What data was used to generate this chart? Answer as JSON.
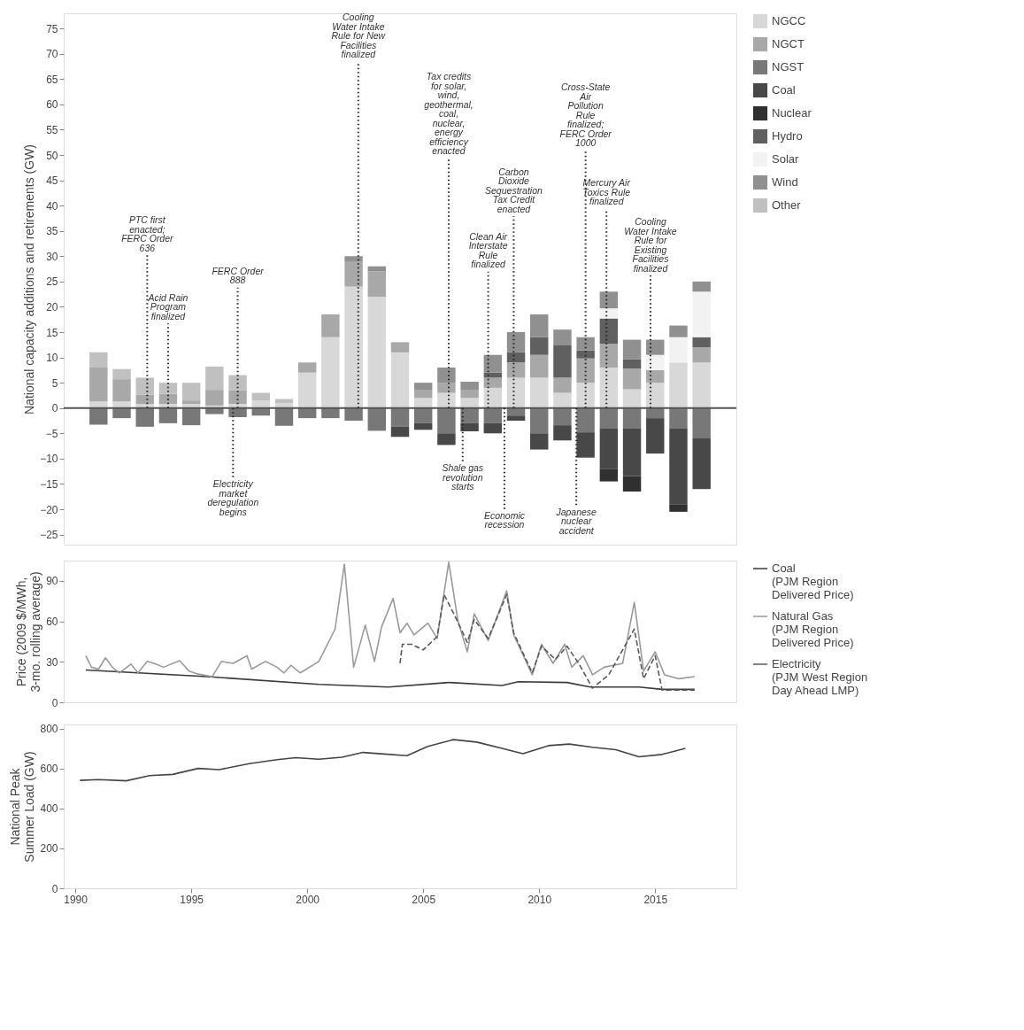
{
  "chart_data": [
    {
      "type": "bar",
      "stacked": true,
      "ylabel": "National capacity additions and retirements (GW)",
      "legend": "right",
      "tick_labels": "y",
      "x": [
        1991,
        1992,
        1993,
        1994,
        1995,
        1996,
        1997,
        1998,
        1999,
        2000,
        2001,
        2002,
        2003,
        2004,
        2005,
        2006,
        2007,
        2008,
        2009,
        2010,
        2011,
        2012,
        2013,
        2014,
        2015,
        2016,
        2017
      ],
      "xlim": [
        1989.5,
        2018.5
      ],
      "xticks": [
        1990,
        1995,
        2000,
        2005,
        2010,
        2015
      ],
      "ylim": [
        -27,
        78
      ],
      "yticks": [
        -25,
        -20,
        -15,
        -10,
        -5,
        0,
        5,
        10,
        15,
        20,
        25,
        30,
        35,
        40,
        45,
        50,
        55,
        60,
        65,
        70,
        75
      ],
      "series": [
        {
          "name": "NGCC",
          "color": "#d8d8d8",
          "values": [
            1.3,
            1.3,
            0.8,
            0.8,
            0.8,
            0.5,
            0.8,
            1.5,
            1,
            7,
            14,
            24,
            22,
            11,
            2,
            3,
            2,
            4,
            6,
            6,
            3,
            5,
            8,
            3.7,
            5,
            9,
            9
          ]
        },
        {
          "name": "NGCT",
          "color": "#a8a8a8",
          "values": [
            6.7,
            4.4,
            1.8,
            2,
            0.7,
            3.1,
            2.7,
            null,
            null,
            2,
            4.5,
            5,
            5,
            2,
            1.5,
            2,
            1.5,
            2,
            3,
            4.5,
            3,
            4.8,
            4.7,
            4.1,
            2.5,
            null,
            3
          ]
        },
        {
          "name": "NGST",
          "color": "#787878",
          "values": [
            -3.3,
            -2,
            -3.7,
            -3,
            -3.4,
            -1.2,
            -1.8,
            -1.5,
            -3.5,
            -2,
            -2,
            -2.5,
            -4.5,
            -3.7,
            -3,
            -5,
            -3,
            -3,
            -1.5,
            -5,
            -3.4,
            -4.8,
            -4,
            -4,
            -2,
            -4,
            -6
          ]
        },
        {
          "name": "Coal",
          "color": "#484848",
          "values": [
            null,
            null,
            null,
            null,
            null,
            null,
            null,
            null,
            null,
            null,
            null,
            null,
            null,
            -2,
            -1.3,
            -2.3,
            -1.6,
            -2,
            -1,
            -3.2,
            -3,
            -5,
            -8,
            -9.5,
            -7,
            -15,
            -10
          ]
        },
        {
          "name": "Nuclear",
          "color": "#303030",
          "values": [
            null,
            null,
            null,
            null,
            null,
            null,
            null,
            null,
            null,
            null,
            null,
            null,
            null,
            null,
            null,
            null,
            null,
            null,
            null,
            null,
            null,
            null,
            -2.5,
            -3,
            null,
            -1.5,
            null
          ]
        },
        {
          "name": "Hydro",
          "color": "#606060",
          "values": [
            null,
            null,
            null,
            null,
            null,
            null,
            null,
            null,
            null,
            null,
            null,
            null,
            null,
            null,
            null,
            null,
            null,
            1,
            2,
            3.5,
            6.5,
            1.6,
            5,
            1.8,
            null,
            null,
            2
          ]
        },
        {
          "name": "Solar",
          "color": "#f2f2f2",
          "values": [
            null,
            null,
            null,
            null,
            null,
            null,
            null,
            null,
            null,
            null,
            null,
            null,
            null,
            null,
            null,
            null,
            null,
            null,
            null,
            null,
            null,
            null,
            2,
            null,
            3,
            5,
            9
          ]
        },
        {
          "name": "Wind",
          "color": "#909090",
          "values": [
            null,
            null,
            null,
            null,
            null,
            null,
            null,
            null,
            null,
            null,
            null,
            1,
            1,
            null,
            1.5,
            3,
            1.7,
            3.5,
            4,
            4.5,
            3,
            2.6,
            3.3,
            3.9,
            3,
            2.3,
            2
          ]
        },
        {
          "name": "Other",
          "color": "#c0c0c0",
          "values": [
            3,
            2,
            3.4,
            2.2,
            3.5,
            4.6,
            3,
            1.5,
            0.8,
            null,
            null,
            null,
            null,
            null,
            null,
            null,
            null,
            null,
            null,
            null,
            null,
            null,
            null,
            null,
            null,
            null,
            null
          ]
        }
      ],
      "ref_lines": [
        {
          "axis": "y",
          "value": 0,
          "color": "#555555"
        },
        {
          "axis": "x",
          "value": 1993.1,
          "line_style": "dotted",
          "label": "PTC first\nenacted;\nFERC Order\n636"
        },
        {
          "axis": "x",
          "value": 1994.0,
          "line_style": "dotted",
          "label": "Acid Rain\nProgram\nfinalized"
        },
        {
          "axis": "x",
          "value": 1997.0,
          "line_style": "dotted",
          "label": "FERC Order\n888"
        },
        {
          "axis": "x",
          "value": 1996.8,
          "line_style": "dotted",
          "label": "Electricity\nmarket\nderegulation\nbegins"
        },
        {
          "axis": "x",
          "value": 2002.2,
          "line_style": "dotted",
          "label": "Cooling\nWater Intake\nRule for New\nFacilities\nfinalized"
        },
        {
          "axis": "x",
          "value": 2006.1,
          "line_style": "dotted",
          "label": "Tax credits\nfor solar,\nwind,\ngeothermal,\ncoal,\nnuclear,\nenergy\nefficiency\nenacted"
        },
        {
          "axis": "x",
          "value": 2006.7,
          "line_style": "dotted",
          "label": "Shale gas\nrevolution\nstarts"
        },
        {
          "axis": "x",
          "value": 2008.9,
          "line_style": "dotted",
          "label": "Carbon\nDioxide\nSequestration\nTax Credit\nenacted"
        },
        {
          "axis": "x",
          "value": 2007.8,
          "line_style": "dotted",
          "label": "Clean Air\nInterstate\nRule\nfinalized"
        },
        {
          "axis": "x",
          "value": 2008.5,
          "line_style": "dotted",
          "label": "Economic\nrecession"
        },
        {
          "axis": "x",
          "value": 2012.0,
          "line_style": "dotted",
          "label": "Cross-State\nAir\nPollution\nRule\nfinalized;\nFERC Order\n1000"
        },
        {
          "axis": "x",
          "value": 2012.9,
          "line_style": "dotted",
          "label": "Mercury Air\nToxics Rule\nfinalized"
        },
        {
          "axis": "x",
          "value": 2011.6,
          "line_style": "dotted",
          "label": "Japanese\nnuclear\naccident"
        },
        {
          "axis": "x",
          "value": 2014.8,
          "line_style": "dotted",
          "label": "Cooling\nWater Intake\nRule for\nExisting\nFacilities\nfinalized"
        }
      ]
    },
    {
      "type": "line",
      "ylabel": "Price (2009 $/MWh,\n3-mo. rolling average)",
      "legend": "right",
      "tick_labels": "y",
      "xlim": [
        1989.5,
        2018.5
      ],
      "xticks": [
        1990,
        1995,
        2000,
        2005,
        2010,
        2015
      ],
      "ylim": [
        0,
        105
      ],
      "yticks": [
        0,
        30,
        60,
        90
      ],
      "series": [
        {
          "name": "Coal\n(PJM Region\nDelivered Price)",
          "color": "#3a3a3a",
          "line_style": "solid",
          "x": [
            1990.45,
            1995.7,
            2000.5,
            2003.5,
            2006.1,
            2008.4,
            2009.1,
            2011.2,
            2012.2,
            2014.3,
            2015.3,
            2016.7
          ],
          "values": [
            24,
            19,
            13.3,
            11.3,
            14.7,
            12.5,
            15.3,
            14.7,
            11.3,
            11.3,
            9.6,
            9.6
          ]
        },
        {
          "name": "Natural Gas\n(PJM Region\nDelivered Price)",
          "color": "#9a9a9a",
          "line_style": "solid",
          "x": [
            1990.45,
            1990.7,
            1991.0,
            1991.3,
            1991.6,
            1991.9,
            1992.4,
            1992.7,
            1993.1,
            1993.4,
            1993.8,
            1994.5,
            1994.9,
            1995.3,
            1995.9,
            1996.3,
            1996.8,
            1997.4,
            1997.6,
            1998.2,
            1998.7,
            1999.0,
            1999.3,
            1999.7,
            2000.5,
            2001.2,
            2001.6,
            2002.0,
            2002.5,
            2002.9,
            2003.2,
            2003.7,
            2004.0,
            2004.3,
            2004.6,
            2005.2,
            2005.6,
            2006.1,
            2006.5,
            2006.9,
            2007.2,
            2007.8,
            2008.6,
            2008.9,
            2009.7,
            2010.1,
            2010.6,
            2011.1,
            2011.4,
            2011.9,
            2012.3,
            2012.8,
            2013.6,
            2014.1,
            2014.5,
            2015.0,
            2015.4,
            2016.0,
            2016.7
          ],
          "values": [
            34.5,
            26,
            24.6,
            33,
            26,
            21.8,
            28.3,
            21.8,
            30.3,
            28.9,
            26,
            30.8,
            23.2,
            20.9,
            19,
            30.3,
            28.9,
            34.5,
            24.6,
            30.3,
            26,
            21.8,
            27.4,
            21.8,
            30.3,
            54.3,
            102.4,
            26,
            57.2,
            30.3,
            55.7,
            77,
            51.5,
            58.6,
            50,
            58.6,
            47.3,
            103.8,
            60,
            37.4,
            65.6,
            45.8,
            82.6,
            50,
            20.4,
            43,
            28.9,
            43,
            26,
            34.5,
            20.4,
            26,
            28.9,
            74.1,
            23.2,
            37.4,
            20.4,
            17.5,
            19
          ]
        },
        {
          "name": "Electricity\n(PJM West Region\nDay Ahead LMP)",
          "color": "#5a5a5a",
          "line_style": "dashed",
          "x": [
            2004.0,
            2004.1,
            2004.5,
            2005.0,
            2005.6,
            2005.9,
            2006.4,
            2006.9,
            2007.2,
            2007.8,
            2008.6,
            2008.9,
            2009.7,
            2010.1,
            2010.7,
            2011.2,
            2011.7,
            2012.3,
            2013.0,
            2014.1,
            2014.5,
            2015.0,
            2015.3,
            2016.7
          ],
          "values": [
            28.9,
            43,
            43,
            38.8,
            48.7,
            79.8,
            62.8,
            44.4,
            61.4,
            47.3,
            79.8,
            51.5,
            21.8,
            41.6,
            31.7,
            41.6,
            28.9,
            10.5,
            20.4,
            54.3,
            17.5,
            34.5,
            9,
            9
          ]
        }
      ]
    },
    {
      "type": "line",
      "ylabel": "National Peak\nSummer Load (GW)",
      "xlim": [
        1989.5,
        2018.5
      ],
      "xticks": [
        1990,
        1995,
        2000,
        2005,
        2010,
        2015
      ],
      "ylim": [
        0,
        820
      ],
      "yticks": [
        0,
        200,
        400,
        600,
        800
      ],
      "series": [
        {
          "color": "#444444",
          "line_style": "solid",
          "x": [
            1990.2,
            1991.0,
            1992.2,
            1993.2,
            1994.2,
            1995.3,
            1996.2,
            1997.5,
            1998.7,
            1999.5,
            2000.5,
            2001.5,
            2002.4,
            2003.3,
            2004.3,
            2005.2,
            2006.3,
            2007.3,
            2008.4,
            2009.3,
            2010.4,
            2011.3,
            2012.3,
            2013.3,
            2014.3,
            2015.3,
            2016.3
          ],
          "values": [
            540,
            544,
            538,
            564,
            570,
            600,
            594,
            624,
            644,
            654,
            646,
            656,
            680,
            672,
            664,
            710,
            744,
            732,
            700,
            674,
            714,
            722,
            706,
            694,
            658,
            670,
            700
          ]
        }
      ]
    }
  ]
}
